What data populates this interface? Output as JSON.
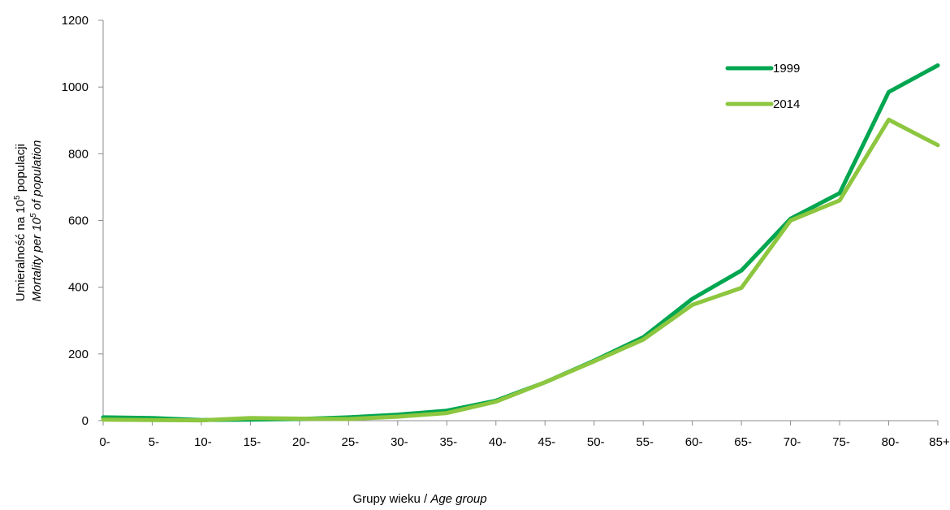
{
  "chart_data": {
    "type": "line",
    "categories": [
      "0-",
      "5-",
      "10-",
      "15-",
      "20-",
      "25-",
      "30-",
      "35-",
      "40-",
      "45-",
      "50-",
      "55-",
      "60-",
      "65-",
      "70-",
      "75-",
      "80-",
      "85+"
    ],
    "series": [
      {
        "name": "1999",
        "color": "#00a650",
        "values": [
          10,
          8,
          2,
          3,
          5,
          10,
          18,
          30,
          60,
          115,
          180,
          250,
          365,
          450,
          605,
          682,
          985,
          1065
        ]
      },
      {
        "name": "2014",
        "color": "#8dc63f",
        "values": [
          3,
          2,
          1,
          8,
          6,
          5,
          12,
          23,
          57,
          115,
          178,
          243,
          347,
          398,
          600,
          660,
          902,
          826
        ]
      }
    ],
    "yticks": [
      "0",
      "200",
      "400",
      "600",
      "800",
      "1000",
      "1200"
    ],
    "ylim": [
      0,
      1200
    ],
    "grid": false,
    "legend_position": "top-right",
    "ylabel": {
      "line1_prefix": "Umieralność na 10",
      "line1_sup": "5",
      "line1_suffix": "  populacji",
      "line2_prefix": "Mortality per 10",
      "line2_sup": "5",
      "line2_suffix": "  of population"
    },
    "xlabel": {
      "plain": "Grupy wieku / ",
      "italic": "Age group"
    }
  }
}
